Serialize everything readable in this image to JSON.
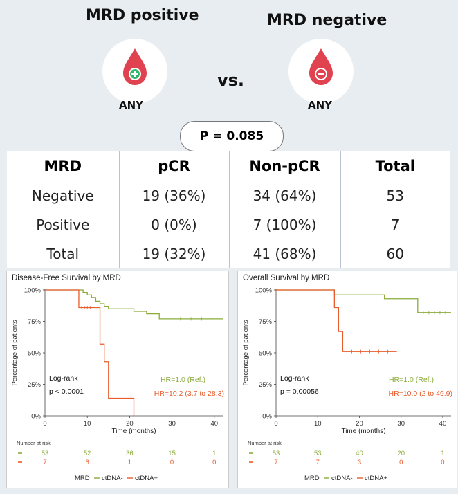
{
  "header": {
    "left_title": "MRD positive",
    "right_title": "MRD negative",
    "vs": "vs.",
    "left_sub": "ANY",
    "right_sub": "ANY",
    "p_value": "P = 0.085"
  },
  "table": {
    "columns": [
      "MRD",
      "pCR",
      "Non-pCR",
      "Total"
    ],
    "rows": [
      [
        "Negative",
        "19 (36%)",
        "34 (64%)",
        "53"
      ],
      [
        "Positive",
        "0 (0%)",
        "7 (100%)",
        "7"
      ],
      [
        "Total",
        "19 (32%)",
        "41 (68%)",
        "60"
      ]
    ]
  },
  "colors": {
    "neg": "#8bab3a",
    "pos": "#e85c2c",
    "drop": "#e0424f"
  },
  "chart_data": [
    {
      "type": "line",
      "title": "Disease-Free Survival by MRD",
      "xlabel": "Time (months)",
      "ylabel": "Percentage of patients",
      "xlim": [
        0,
        42
      ],
      "ylim": [
        0,
        100
      ],
      "xticks": [
        0,
        10,
        20,
        30,
        40
      ],
      "yticks": [
        "0%",
        "25%",
        "50%",
        "75%",
        "100%"
      ],
      "test_label": "Log-rank",
      "test_p": "p < 0.0001",
      "hr_ref": "HR=1.0 (Ref.)",
      "hr_pos": "HR=10.2 (3.7 to 28.3)",
      "series": [
        {
          "name": "ctDNA-",
          "x": [
            0,
            8,
            9,
            10,
            11,
            12,
            13,
            14,
            15,
            21,
            24,
            27,
            42
          ],
          "y": [
            100,
            100,
            98,
            96,
            94,
            91,
            89,
            87,
            85,
            83,
            81,
            77,
            77
          ]
        },
        {
          "name": "ctDNA+",
          "x": [
            0,
            8,
            12,
            13,
            14,
            15,
            21
          ],
          "y": [
            100,
            86,
            86,
            57,
            43,
            14,
            0
          ]
        }
      ],
      "risk_title": "Number at risk",
      "risk_times": [
        0,
        10,
        20,
        30,
        40
      ],
      "risk_neg": [
        "53",
        "52",
        "36",
        "15",
        "1"
      ],
      "risk_pos": [
        "7",
        "6",
        "1",
        "0",
        "0"
      ],
      "legend_title": "MRD",
      "legend_neg": "ctDNA-",
      "legend_pos": "ctDNA+"
    },
    {
      "type": "line",
      "title": "Overall Survival by MRD",
      "xlabel": "Time (months)",
      "ylabel": "Percentage of patients",
      "xlim": [
        0,
        42
      ],
      "ylim": [
        0,
        100
      ],
      "xticks": [
        0,
        10,
        20,
        30,
        40
      ],
      "yticks": [
        "0%",
        "25%",
        "50%",
        "75%",
        "100%"
      ],
      "test_label": "Log-rank",
      "test_p": "p = 0.00056",
      "hr_ref": "HR=1.0 (Ref.)",
      "hr_pos": "HR=10.0 (2 to 49.9)",
      "series": [
        {
          "name": "ctDNA-",
          "x": [
            0,
            14,
            26,
            34,
            42
          ],
          "y": [
            100,
            96,
            93,
            82,
            82
          ]
        },
        {
          "name": "ctDNA+",
          "x": [
            0,
            14,
            15,
            16,
            29
          ],
          "y": [
            100,
            86,
            67,
            51,
            51
          ]
        }
      ],
      "risk_title": "Number at risk",
      "risk_times": [
        0,
        10,
        20,
        30,
        40
      ],
      "risk_neg": [
        "53",
        "53",
        "40",
        "20",
        "1"
      ],
      "risk_pos": [
        "7",
        "7",
        "3",
        "0",
        "0"
      ],
      "legend_title": "MRD",
      "legend_neg": "ctDNA-",
      "legend_pos": "ctDNA+"
    }
  ]
}
